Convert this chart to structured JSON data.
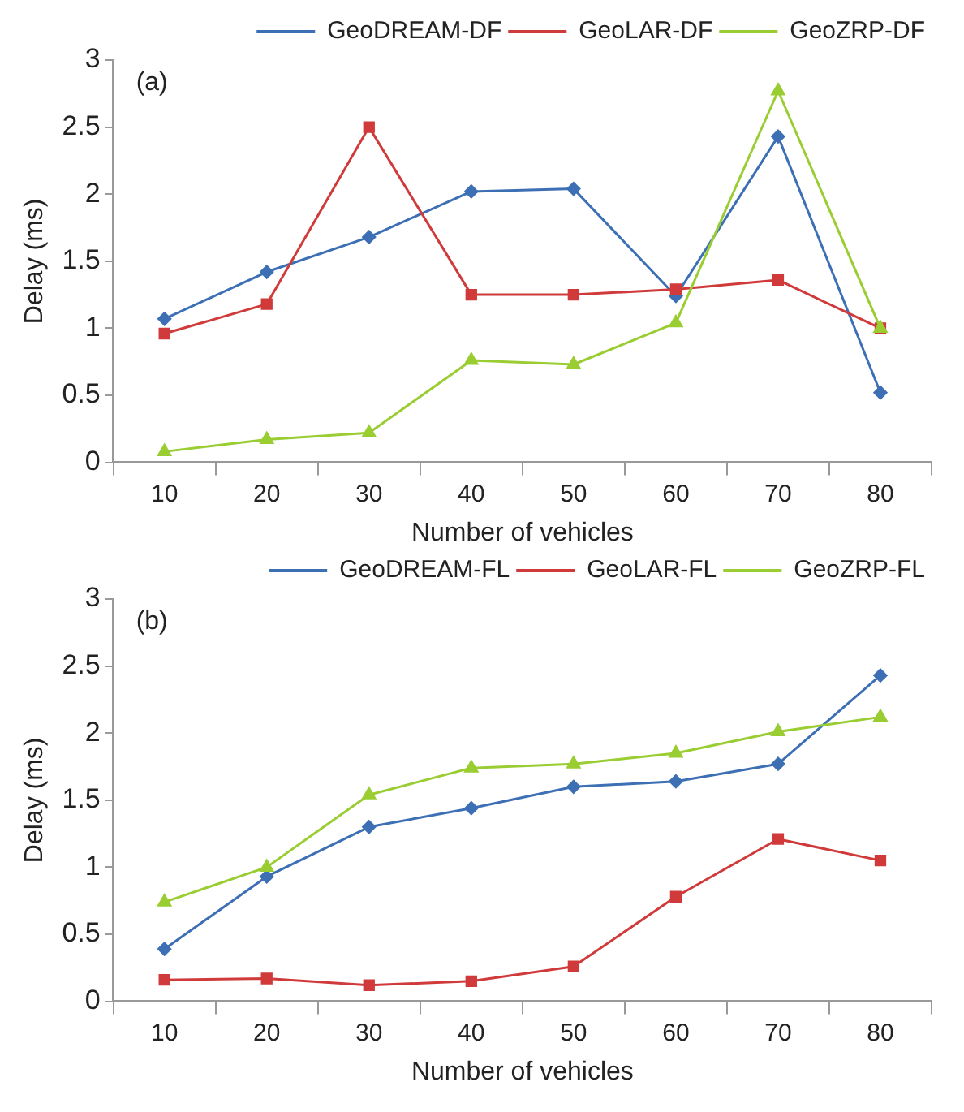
{
  "chart_data": [
    {
      "type": "line",
      "annotations": [
        "(a)"
      ],
      "xlabel": "Number of vehicles",
      "ylabel": "Delay (ms)",
      "categories": [
        "10",
        "20",
        "30",
        "40",
        "50",
        "60",
        "70",
        "80"
      ],
      "ylim": [
        0,
        3
      ],
      "yticks": [
        0,
        0.5,
        1,
        1.5,
        2,
        2.5,
        3
      ],
      "grid": false,
      "legend": "top right",
      "line_style": "solid",
      "series": [
        {
          "name": "GeoDREAM-DF",
          "color": "#3d6fb5",
          "marker": "diamond",
          "values": [
            1.07,
            1.42,
            1.68,
            2.02,
            2.04,
            1.24,
            2.43,
            0.52
          ]
        },
        {
          "name": "GeoLAR-DF",
          "color": "#d03a3a",
          "marker": "square",
          "values": [
            0.96,
            1.18,
            2.5,
            1.25,
            1.25,
            1.29,
            1.36,
            1.0
          ]
        },
        {
          "name": "GeoZRP-DF",
          "color": "#9acd32",
          "marker": "triangle",
          "values": [
            0.08,
            0.17,
            0.22,
            0.76,
            0.73,
            1.04,
            2.77,
            1.0
          ]
        }
      ]
    },
    {
      "type": "line",
      "annotations": [
        "(b)"
      ],
      "xlabel": "Number of vehicles",
      "ylabel": "Delay (ms)",
      "categories": [
        "10",
        "20",
        "30",
        "40",
        "50",
        "60",
        "70",
        "80"
      ],
      "ylim": [
        0,
        3
      ],
      "yticks": [
        0,
        0.5,
        1,
        1.5,
        2,
        2.5,
        3
      ],
      "grid": false,
      "legend": "top right",
      "line_style": "solid",
      "series": [
        {
          "name": "GeoDREAM-FL",
          "color": "#3d6fb5",
          "marker": "diamond",
          "values": [
            0.39,
            0.93,
            1.3,
            1.44,
            1.6,
            1.64,
            1.77,
            2.43
          ]
        },
        {
          "name": "GeoLAR-FL",
          "color": "#d03a3a",
          "marker": "square",
          "values": [
            0.16,
            0.17,
            0.12,
            0.15,
            0.26,
            0.78,
            1.21,
            1.05
          ]
        },
        {
          "name": "GeoZRP-FL",
          "color": "#9acd32",
          "marker": "triangle",
          "values": [
            0.74,
            1.0,
            1.54,
            1.74,
            1.77,
            1.85,
            2.01,
            2.12
          ]
        }
      ]
    }
  ]
}
